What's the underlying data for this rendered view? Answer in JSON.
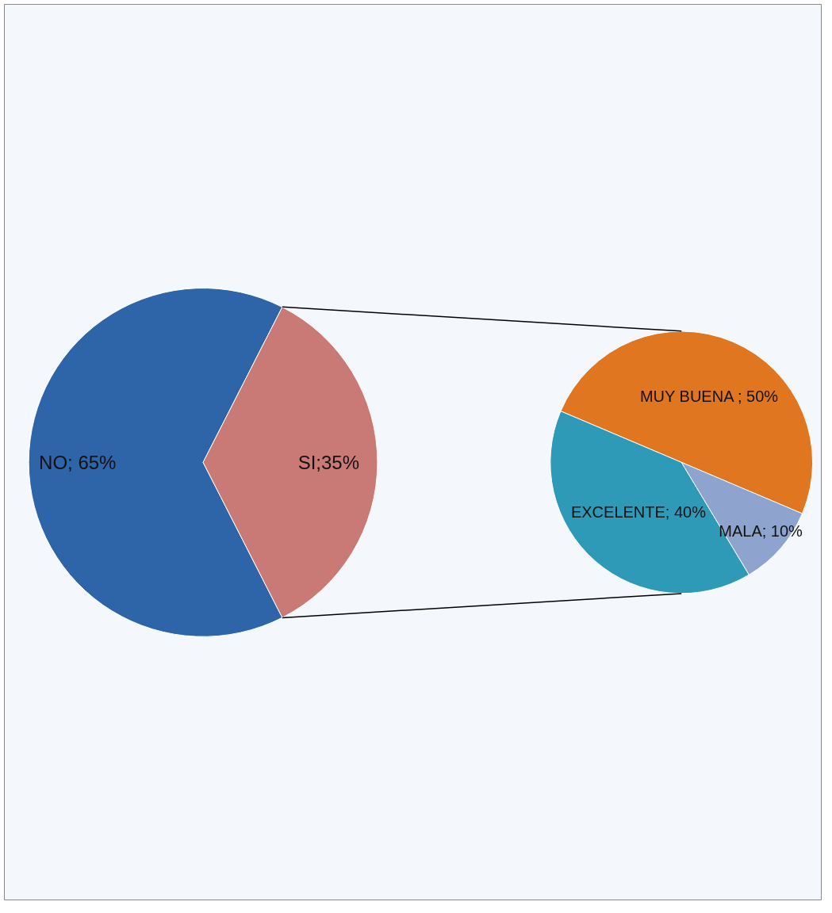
{
  "chart_data": [
    {
      "type": "pie",
      "categories": [
        "NO",
        "SI"
      ],
      "values": [
        65,
        35
      ],
      "colors": [
        "#2e64a8",
        "#c97a76"
      ],
      "value_labels": [
        "65%",
        "35%"
      ]
    },
    {
      "type": "pie",
      "categories": [
        "MUY BUENA",
        "EXCELENTE",
        "MALA"
      ],
      "values": [
        50,
        40,
        10
      ],
      "colors": [
        "#e0761f",
        "#2e9ab8",
        "#8ea4cf"
      ],
      "value_labels": [
        "50%",
        "40%",
        "10%"
      ]
    }
  ]
}
